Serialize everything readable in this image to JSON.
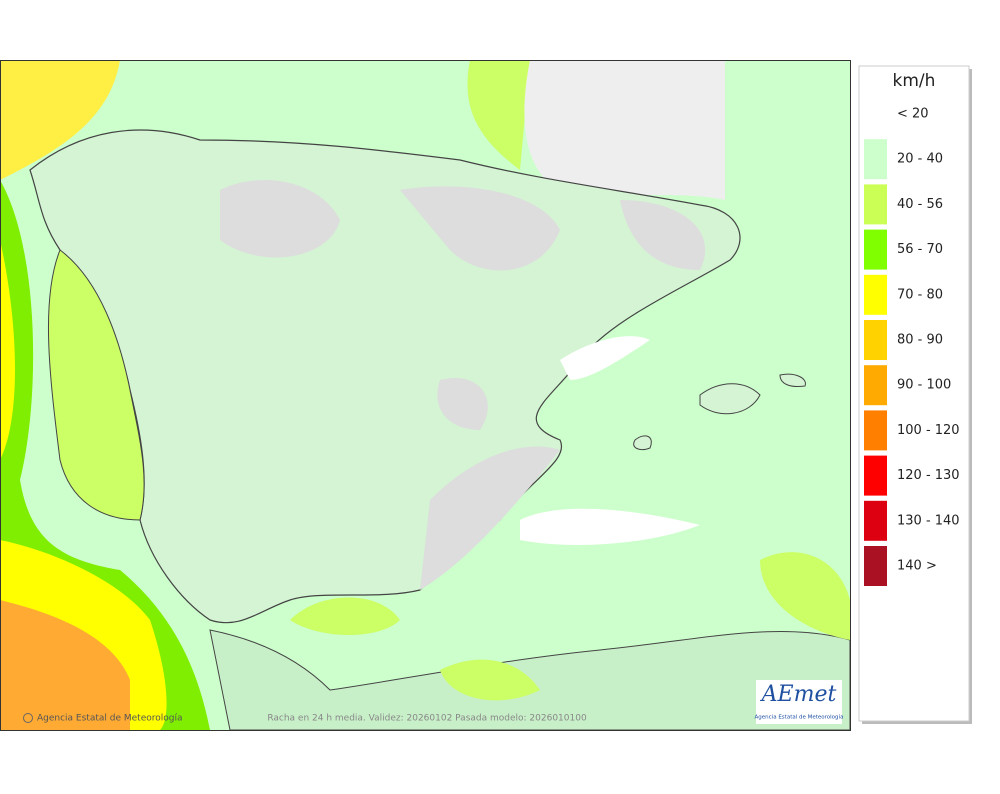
{
  "map": {
    "footer_left": "Agencia Estatal de Meteorología",
    "footer_center": "Racha en 24 h media. Validez: 20260102 Pasada modelo: 2026010100",
    "logo": {
      "name": "AEmet",
      "subtitle": "Agencia Estatal de Meteorología"
    }
  },
  "legend": {
    "unit": "km/h",
    "entries": [
      {
        "label": "< 20",
        "color": null
      },
      {
        "label": "20 - 40",
        "color": "#ccffcc"
      },
      {
        "label": "40 - 56",
        "color": "#ccff55"
      },
      {
        "label": "56 - 70",
        "color": "#80ff00"
      },
      {
        "label": "70 - 80",
        "color": "#ffff00"
      },
      {
        "label": "80 - 90",
        "color": "#ffd200"
      },
      {
        "label": "90 - 100",
        "color": "#ffaa00"
      },
      {
        "label": "100 - 120",
        "color": "#ff8000"
      },
      {
        "label": "120 - 130",
        "color": "#ff0000"
      },
      {
        "label": "130 - 140",
        "color": "#dd0011"
      },
      {
        "label": "140 >",
        "color": "#aa1122"
      }
    ]
  }
}
